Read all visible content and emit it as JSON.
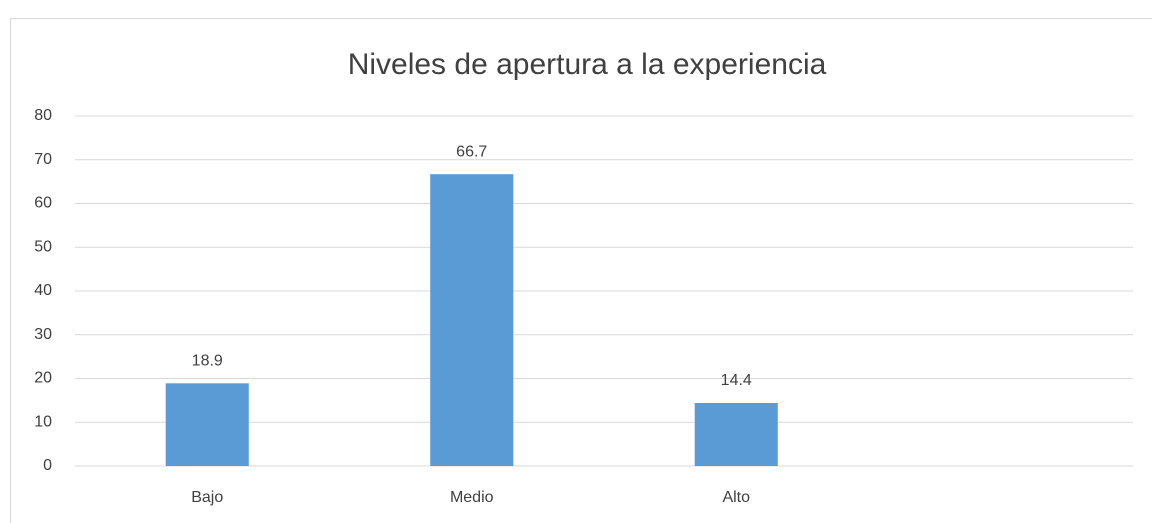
{
  "chart_data": {
    "type": "bar",
    "title": "Niveles de apertura a la experiencia",
    "categories": [
      "Bajo",
      "Medio",
      "Alto",
      null
    ],
    "values": [
      18.9,
      66.7,
      14.4,
      null
    ],
    "color": "#5b9bd5",
    "ylim": [
      0,
      80
    ],
    "yticks": [
      0,
      10,
      20,
      30,
      40,
      50,
      60,
      70,
      80
    ],
    "grid": true
  }
}
